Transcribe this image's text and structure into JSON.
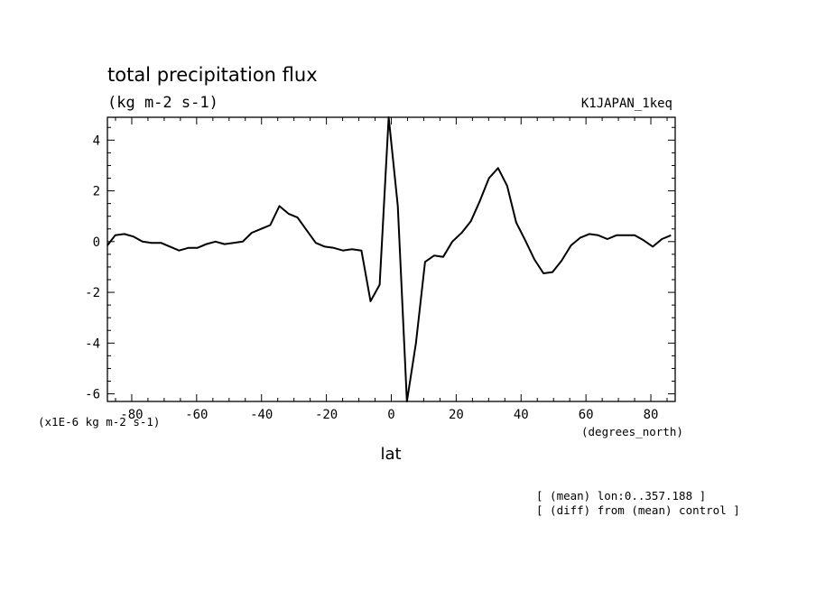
{
  "chart_data": {
    "type": "line",
    "title": "total precipitation flux",
    "units_label": "(kg m-2 s-1)",
    "experiment_label": "K1JAPAN_1keq",
    "y_scale_label": "(x1E-6 kg m-2 s-1)",
    "xlabel": "lat",
    "x_units_label": "(degrees_north)",
    "notes": [
      "[ (mean) lon:0..357.188 ]",
      "[ (diff) from (mean) control ]"
    ],
    "xlim": [
      -87.5,
      87.5
    ],
    "ylim": [
      -6.3,
      4.9
    ],
    "x_ticks": [
      -80,
      -60,
      -40,
      -20,
      0,
      20,
      40,
      60,
      80
    ],
    "y_ticks": [
      -6,
      -4,
      -2,
      0,
      2,
      4
    ],
    "grid": false,
    "x": [
      -87.9,
      -85.1,
      -82.3,
      -79.5,
      -76.7,
      -73.9,
      -71.0,
      -68.2,
      -65.4,
      -62.6,
      -59.8,
      -57.0,
      -54.2,
      -51.4,
      -48.6,
      -45.8,
      -43.0,
      -40.1,
      -37.3,
      -34.5,
      -31.7,
      -28.9,
      -26.1,
      -23.3,
      -20.5,
      -17.7,
      -14.9,
      -12.1,
      -9.2,
      -6.4,
      -3.6,
      -0.8,
      2.0,
      4.8,
      7.6,
      10.4,
      13.2,
      16.0,
      18.8,
      21.7,
      24.5,
      27.3,
      30.1,
      32.9,
      35.7,
      38.5,
      41.3,
      44.1,
      46.9,
      49.7,
      52.5,
      55.4,
      58.2,
      61.0,
      63.8,
      66.6,
      69.4,
      72.2,
      75.0,
      77.8,
      80.6,
      83.4,
      86.2
    ],
    "values": [
      -0.15,
      0.25,
      0.3,
      0.2,
      0.0,
      -0.05,
      -0.05,
      -0.2,
      -0.35,
      -0.25,
      -0.25,
      -0.1,
      0.0,
      -0.1,
      -0.05,
      0.0,
      0.35,
      0.5,
      0.65,
      1.4,
      1.1,
      0.95,
      0.45,
      -0.05,
      -0.2,
      -0.25,
      -0.35,
      -0.3,
      -0.35,
      -2.35,
      -1.7,
      4.9,
      1.4,
      -6.3,
      -4.0,
      -0.8,
      -0.55,
      -0.6,
      0.0,
      0.35,
      0.8,
      1.6,
      2.5,
      2.9,
      2.2,
      0.75,
      0.05,
      -0.7,
      -1.25,
      -1.2,
      -0.75,
      -0.15,
      0.15,
      0.3,
      0.25,
      0.1,
      0.25,
      0.25,
      0.25,
      0.05,
      -0.2,
      0.1,
      0.25
    ]
  }
}
